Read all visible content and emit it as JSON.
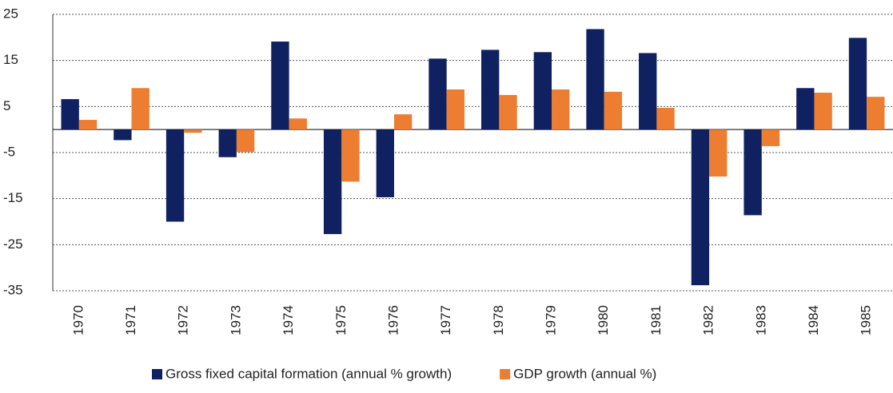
{
  "chart_data": {
    "type": "bar",
    "categories": [
      "1970",
      "1971",
      "1972",
      "1973",
      "1974",
      "1975",
      "1976",
      "1977",
      "1978",
      "1979",
      "1980",
      "1981",
      "1982",
      "1983",
      "1984",
      "1985"
    ],
    "series": [
      {
        "name": "Gross fixed capital formation (annual % growth)",
        "color": "#0f2160",
        "values": [
          6.6,
          -2.3,
          -20,
          -6,
          19.1,
          -22.7,
          -14.7,
          15.4,
          17.3,
          16.8,
          21.8,
          16.6,
          -33.8,
          -18.6,
          9.0,
          19.9
        ]
      },
      {
        "name": "GDP growth (annual %)",
        "color": "#ed7d31",
        "values": [
          2.1,
          9.0,
          -0.7,
          -4.9,
          2.4,
          -11.3,
          3.3,
          8.7,
          7.5,
          8.7,
          8.2,
          4.7,
          -10.2,
          -3.6,
          8.0,
          7.1
        ]
      }
    ],
    "ylim": [
      -35,
      25
    ],
    "yticks": [
      -35,
      -25,
      -15,
      -5,
      5,
      15,
      25
    ],
    "grid": true,
    "legend": "bottom"
  }
}
